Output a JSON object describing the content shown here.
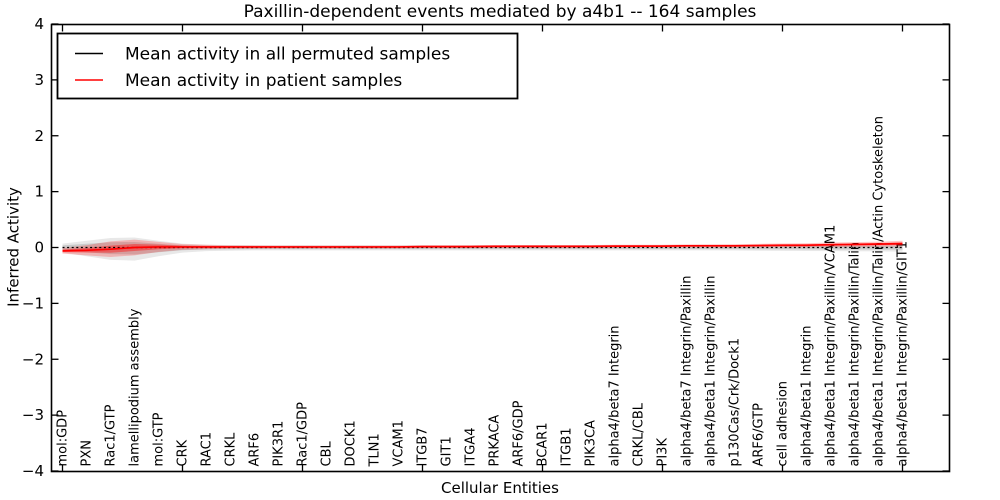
{
  "title": "Paxillin-dependent events mediated by a4b1 -- 164 samples",
  "chart_data": {
    "type": "line",
    "title": "Paxillin-dependent events mediated by a4b1 -- 164 samples",
    "xlabel": "Cellular Entities",
    "ylabel": "Inferred Activity",
    "ylim": [
      -4,
      4
    ],
    "yticks": [
      -4,
      -3,
      -2,
      -1,
      0,
      1,
      2,
      3,
      4
    ],
    "grid": false,
    "legend_position": "upper left",
    "categories": [
      "mol:GDP",
      "PXN",
      "Rac1/GTP",
      "lamellipodium assembly",
      "mol:GTP",
      "CRK",
      "RAC1",
      "CRKL",
      "ARF6",
      "PIK3R1",
      "Rac1/GDP",
      "CBL",
      "DOCK1",
      "TLN1",
      "VCAM1",
      "ITGB7",
      "GIT1",
      "ITGA4",
      "PRKACA",
      "ARF6/GDP",
      "BCAR1",
      "ITGB1",
      "PIK3CA",
      "alpha4/beta7 Integrin",
      "CRKL/CBL",
      "PI3K",
      "alpha4/beta7 Integrin/Paxillin",
      "alpha4/beta1 Integrin/Paxillin",
      "p130Cas/Crk/Dock1",
      "ARF6/GTP",
      "cell adhesion",
      "alpha4/beta1 Integrin",
      "alpha4/beta1 Integrin/Paxillin/VCAM1",
      "alpha4/beta1 Integrin/Paxillin/Talin",
      "alpha4/beta1 Integrin/Paxillin/Talin/Actin Cytoskeleton",
      "alpha4/beta1 Integrin/Paxillin/GIT1"
    ],
    "series": [
      {
        "name": "Mean activity in all permuted samples",
        "color": "#000000",
        "line_style": "dotted",
        "values": [
          0,
          0,
          0,
          0,
          0,
          0,
          0,
          0,
          0,
          0,
          0,
          0,
          0,
          0,
          0,
          0,
          0,
          0,
          0,
          0,
          0,
          0,
          0,
          0,
          0,
          0,
          0,
          0,
          0,
          0,
          0,
          0,
          0,
          0,
          0,
          0
        ]
      },
      {
        "name": "Mean activity in patient samples",
        "color": "#ff0000",
        "line_style": "solid",
        "values": [
          -0.06,
          -0.05,
          -0.03,
          0.0,
          0.01,
          0.01,
          0.01,
          0.01,
          0.01,
          0.01,
          0.01,
          0.01,
          0.01,
          0.01,
          0.01,
          0.015,
          0.015,
          0.015,
          0.02,
          0.02,
          0.02,
          0.02,
          0.02,
          0.025,
          0.025,
          0.025,
          0.03,
          0.03,
          0.03,
          0.035,
          0.04,
          0.04,
          0.05,
          0.055,
          0.06,
          0.07
        ]
      }
    ],
    "violin_bands": {
      "permuted": {
        "color": "#000000",
        "fill_opacity": 0.09,
        "half_widths": [
          0.07,
          0.12,
          0.17,
          0.18,
          0.12,
          0.07,
          0.05,
          0.045,
          0.04,
          0.04,
          0.04,
          0.04,
          0.04,
          0.04,
          0.04,
          0.04,
          0.04,
          0.04,
          0.04,
          0.04,
          0.04,
          0.04,
          0.04,
          0.04,
          0.04,
          0.04,
          0.04,
          0.04,
          0.042,
          0.044,
          0.046,
          0.048,
          0.05,
          0.052,
          0.054,
          0.056
        ]
      },
      "patient": {
        "color": "#ff0000",
        "fill_opacity": 0.22,
        "half_widths": [
          0.05,
          0.09,
          0.14,
          0.14,
          0.09,
          0.05,
          0.04,
          0.03,
          0.028,
          0.026,
          0.025,
          0.025,
          0.025,
          0.025,
          0.025,
          0.025,
          0.025,
          0.025,
          0.025,
          0.025,
          0.025,
          0.025,
          0.025,
          0.025,
          0.025,
          0.025,
          0.026,
          0.028,
          0.03,
          0.03,
          0.032,
          0.035,
          0.04,
          0.042,
          0.045,
          0.05
        ]
      }
    }
  }
}
